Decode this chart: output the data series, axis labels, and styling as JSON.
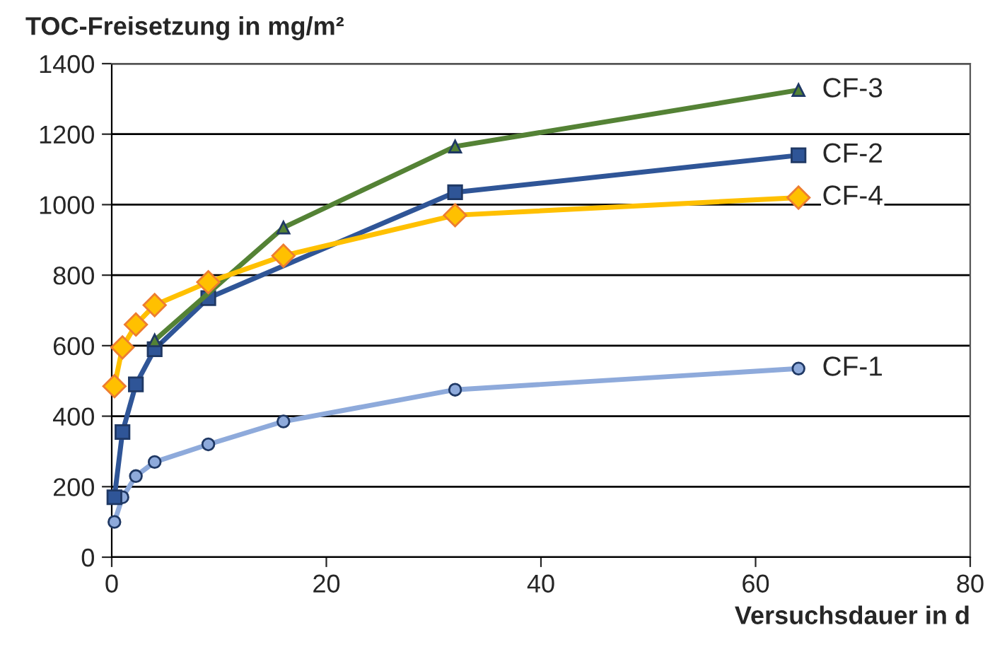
{
  "chart_data": {
    "type": "line",
    "title": "TOC-Freisetzung in mg/m²",
    "xlabel": "Versuchsdauer in d",
    "x": [
      0.25,
      1,
      2.25,
      4,
      9,
      16,
      32,
      64
    ],
    "series": [
      {
        "name": "CF-1",
        "color": "#8eaadb",
        "marker": "circle",
        "values": [
          100,
          170,
          230,
          270,
          320,
          385,
          475,
          535
        ]
      },
      {
        "name": "CF-2",
        "color": "#2f5597",
        "marker": "square",
        "values": [
          170,
          355,
          490,
          590,
          735,
          null,
          1035,
          1140
        ]
      },
      {
        "name": "CF-3",
        "color": "#548235",
        "marker": "triangle",
        "values": [
          null,
          null,
          null,
          615,
          null,
          935,
          1165,
          1325
        ]
      },
      {
        "name": "CF-4",
        "color": "#ffc000",
        "marker": "diamond",
        "values": [
          485,
          595,
          660,
          715,
          780,
          855,
          970,
          1020
        ]
      }
    ],
    "xlim": [
      0,
      80
    ],
    "xticks": [
      0,
      20,
      40,
      60,
      80
    ],
    "ylim": [
      0,
      1400
    ],
    "yticks": [
      0,
      200,
      400,
      600,
      800,
      1000,
      1200,
      1400
    ],
    "grid": "y",
    "legend": false
  }
}
